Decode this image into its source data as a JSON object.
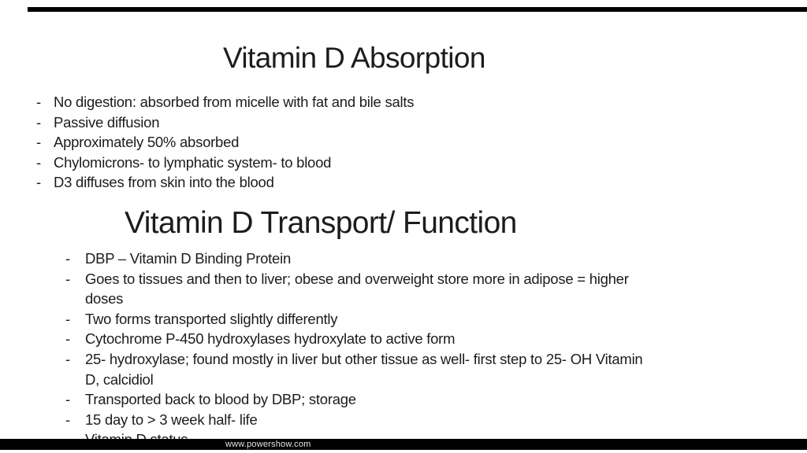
{
  "slide": {
    "bullet_char": "-",
    "section_absorption": {
      "title": "Vitamin D Absorption",
      "bullets": [
        "No digestion: absorbed from micelle with fat and bile salts",
        "Passive diffusion",
        "Approximately 50% absorbed",
        "Chylomicrons- to lymphatic system- to blood",
        "D3 diffuses from skin into the blood"
      ]
    },
    "section_transport": {
      "title": "Vitamin D Transport/ Function",
      "bullets": [
        "DBP – Vitamin D Binding Protein",
        "Goes to tissues and then to liver; obese and overweight store more in adipose = higher doses",
        "Two forms transported slightly differently",
        "Cytochrome P-450 hydroxylases hydroxylate to active form",
        "25- hydroxylase; found mostly in liver but other tissue as well- first step to 25- OH Vitamin D, calcidiol",
        "Transported back to blood by DBP; storage",
        "15 day to > 3 week half- life",
        "Vitamin D status"
      ]
    },
    "watermark": "www.powershow.com"
  },
  "colors": {
    "background": "#ffffff",
    "text": "#1c1c1c",
    "bar": "#000000",
    "watermark_text": "#e6e6e6"
  }
}
